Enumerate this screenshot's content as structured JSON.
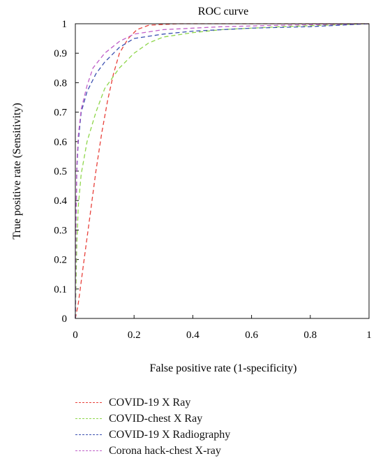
{
  "chart_data": {
    "type": "line",
    "title": "ROC curve",
    "xlabel": "False positive rate (1-specificity)",
    "ylabel": "True positive rate (Sensitivity)",
    "xlim": [
      0,
      1
    ],
    "ylim": [
      0,
      1
    ],
    "x_ticks": [
      "0",
      "0.2",
      "0.4",
      "0.6",
      "0.8",
      "1"
    ],
    "y_ticks": [
      "0",
      "0.1",
      "0.2",
      "0.3",
      "0.4",
      "0.5",
      "0.6",
      "0.7",
      "0.8",
      "0.9",
      "1"
    ],
    "grid": false,
    "legend_position": "bottom",
    "series": [
      {
        "name": "COVID-19 X Ray",
        "color": "#e8403a",
        "points": [
          [
            0,
            0
          ],
          [
            0.01,
            0.05
          ],
          [
            0.03,
            0.2
          ],
          [
            0.05,
            0.35
          ],
          [
            0.07,
            0.5
          ],
          [
            0.09,
            0.63
          ],
          [
            0.11,
            0.74
          ],
          [
            0.13,
            0.83
          ],
          [
            0.15,
            0.9
          ],
          [
            0.18,
            0.95
          ],
          [
            0.21,
            0.98
          ],
          [
            0.25,
            0.995
          ],
          [
            0.35,
            1
          ],
          [
            0.6,
            1
          ],
          [
            1,
            1
          ]
        ]
      },
      {
        "name": "COVID-chest X Ray",
        "color": "#8ed64a",
        "points": [
          [
            0,
            0
          ],
          [
            0.005,
            0.25
          ],
          [
            0.01,
            0.38
          ],
          [
            0.02,
            0.49
          ],
          [
            0.04,
            0.6
          ],
          [
            0.07,
            0.7
          ],
          [
            0.1,
            0.78
          ],
          [
            0.15,
            0.85
          ],
          [
            0.2,
            0.9
          ],
          [
            0.25,
            0.935
          ],
          [
            0.3,
            0.955
          ],
          [
            0.4,
            0.97
          ],
          [
            0.5,
            0.98
          ],
          [
            0.7,
            0.99
          ],
          [
            1,
            1
          ]
        ]
      },
      {
        "name": "COVID-19 X Radiography",
        "color": "#3a4fb0",
        "points": [
          [
            0,
            0
          ],
          [
            0.002,
            0.3
          ],
          [
            0.005,
            0.5
          ],
          [
            0.01,
            0.6
          ],
          [
            0.02,
            0.7
          ],
          [
            0.04,
            0.77
          ],
          [
            0.07,
            0.83
          ],
          [
            0.1,
            0.87
          ],
          [
            0.15,
            0.92
          ],
          [
            0.2,
            0.95
          ],
          [
            0.3,
            0.965
          ],
          [
            0.4,
            0.975
          ],
          [
            0.6,
            0.985
          ],
          [
            0.8,
            0.99
          ],
          [
            1,
            1
          ]
        ]
      },
      {
        "name": "Corona hack-chest X-ray",
        "color": "#c060c8",
        "points": [
          [
            0,
            0
          ],
          [
            0.002,
            0.3
          ],
          [
            0.005,
            0.52
          ],
          [
            0.01,
            0.62
          ],
          [
            0.02,
            0.71
          ],
          [
            0.04,
            0.79
          ],
          [
            0.06,
            0.85
          ],
          [
            0.1,
            0.9
          ],
          [
            0.15,
            0.94
          ],
          [
            0.2,
            0.965
          ],
          [
            0.3,
            0.98
          ],
          [
            0.5,
            0.99
          ],
          [
            0.7,
            0.995
          ],
          [
            1,
            1
          ]
        ]
      }
    ]
  }
}
